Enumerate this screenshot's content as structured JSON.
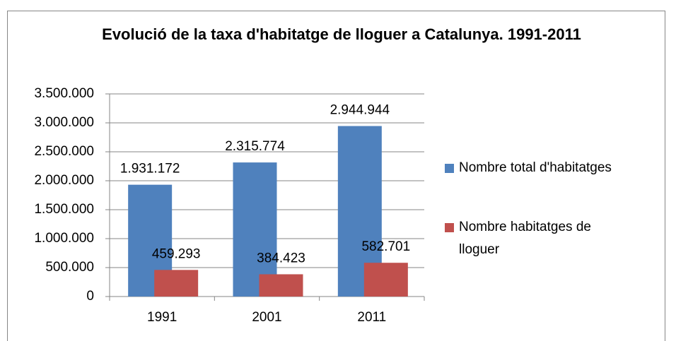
{
  "chart_data": {
    "type": "bar",
    "title": "Evolució de la taxa d'habitatge de lloguer a Catalunya. 1991-2011",
    "categories": [
      "1991",
      "2001",
      "2011"
    ],
    "series": [
      {
        "name": "Nombre total d'habitatges",
        "color": "#4f81bd",
        "values": [
          1931172,
          2315774,
          2944944
        ],
        "value_labels": [
          "1.931.172",
          "2.315.774",
          "2.944.944"
        ]
      },
      {
        "name": "Nombre habitatges de lloguer",
        "color": "#c0504d",
        "values": [
          459293,
          384423,
          582701
        ],
        "value_labels": [
          "459.293",
          "384.423",
          "582.701"
        ]
      }
    ],
    "ylim": [
      0,
      3500000
    ],
    "yticks": [
      0,
      {
        "value": 500000,
        "label": "500.000"
      },
      {
        "value": 1000000,
        "label": "1.000.000"
      },
      {
        "value": 1500000,
        "label": "1.500.000"
      },
      {
        "value": 2000000,
        "label": "2.000.000"
      },
      {
        "value": 2500000,
        "label": "2.500.000"
      },
      {
        "value": 3000000,
        "label": "3.000.000"
      },
      {
        "value": 3500000,
        "label": "3.500.000"
      }
    ],
    "grid": true,
    "legend": "right"
  }
}
